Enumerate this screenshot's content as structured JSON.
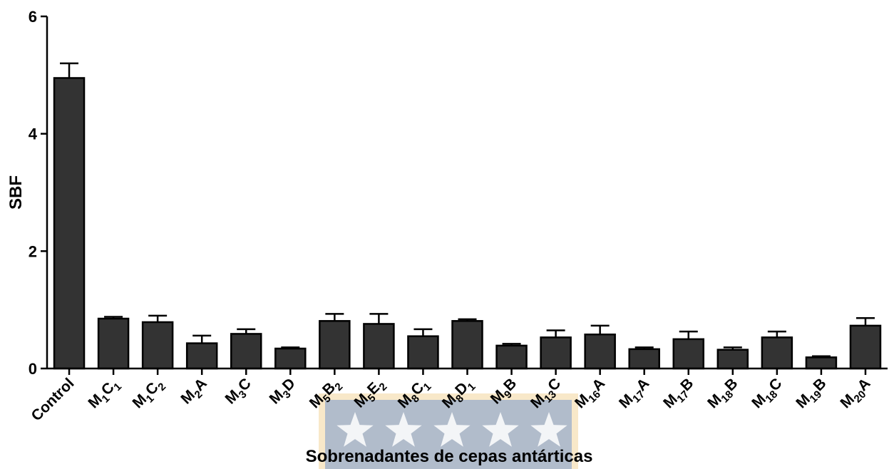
{
  "chart_data": {
    "type": "bar",
    "xlabel": "Sobrenadantes de cepas antárticas",
    "ylabel": "SBF",
    "ylim": [
      0,
      6
    ],
    "yticks": [
      "0",
      "2",
      "4",
      "6"
    ],
    "grid": false,
    "bar_color": "#333333",
    "categories": [
      {
        "main": "Control",
        "parts": [
          {
            "t": "Control",
            "sub": false
          }
        ]
      },
      {
        "main": "M1C1",
        "parts": [
          {
            "t": "M",
            "sub": false
          },
          {
            "t": "1",
            "sub": true
          },
          {
            "t": "C",
            "sub": false
          },
          {
            "t": "1",
            "sub": true
          }
        ]
      },
      {
        "main": "M1C2",
        "parts": [
          {
            "t": "M",
            "sub": false
          },
          {
            "t": "1",
            "sub": true
          },
          {
            "t": "C",
            "sub": false
          },
          {
            "t": "2",
            "sub": true
          }
        ]
      },
      {
        "main": "M2A",
        "parts": [
          {
            "t": "M",
            "sub": false
          },
          {
            "t": "2",
            "sub": true
          },
          {
            "t": "A",
            "sub": false
          }
        ]
      },
      {
        "main": "M3C",
        "parts": [
          {
            "t": "M",
            "sub": false
          },
          {
            "t": "3",
            "sub": true
          },
          {
            "t": "C",
            "sub": false
          }
        ]
      },
      {
        "main": "M3D",
        "parts": [
          {
            "t": "M",
            "sub": false
          },
          {
            "t": "3",
            "sub": true
          },
          {
            "t": "D",
            "sub": false
          }
        ]
      },
      {
        "main": "M5B2",
        "parts": [
          {
            "t": "M",
            "sub": false
          },
          {
            "t": "5",
            "sub": true
          },
          {
            "t": "B",
            "sub": false
          },
          {
            "t": "2",
            "sub": true
          }
        ]
      },
      {
        "main": "M5E2",
        "parts": [
          {
            "t": "M",
            "sub": false
          },
          {
            "t": "5",
            "sub": true
          },
          {
            "t": "E",
            "sub": false
          },
          {
            "t": "2",
            "sub": true
          }
        ]
      },
      {
        "main": "M8C1",
        "parts": [
          {
            "t": "M",
            "sub": false
          },
          {
            "t": "8",
            "sub": true
          },
          {
            "t": "C",
            "sub": false
          },
          {
            "t": "1",
            "sub": true
          }
        ]
      },
      {
        "main": "M8D1",
        "parts": [
          {
            "t": "M",
            "sub": false
          },
          {
            "t": "8",
            "sub": true
          },
          {
            "t": "D",
            "sub": false
          },
          {
            "t": "1",
            "sub": true
          }
        ]
      },
      {
        "main": "M9B",
        "parts": [
          {
            "t": "M",
            "sub": false
          },
          {
            "t": "9",
            "sub": true
          },
          {
            "t": "B",
            "sub": false
          }
        ]
      },
      {
        "main": "M13C",
        "parts": [
          {
            "t": "M",
            "sub": false
          },
          {
            "t": "13",
            "sub": true
          },
          {
            "t": "C",
            "sub": false
          }
        ]
      },
      {
        "main": "M16A",
        "parts": [
          {
            "t": "M",
            "sub": false
          },
          {
            "t": "16",
            "sub": true
          },
          {
            "t": "A",
            "sub": false
          }
        ]
      },
      {
        "main": "M17A",
        "parts": [
          {
            "t": "M",
            "sub": false
          },
          {
            "t": "17",
            "sub": true
          },
          {
            "t": "A",
            "sub": false
          }
        ]
      },
      {
        "main": "M17B",
        "parts": [
          {
            "t": "M",
            "sub": false
          },
          {
            "t": "17",
            "sub": true
          },
          {
            "t": "B",
            "sub": false
          }
        ]
      },
      {
        "main": "M18B",
        "parts": [
          {
            "t": "M",
            "sub": false
          },
          {
            "t": "18",
            "sub": true
          },
          {
            "t": "B",
            "sub": false
          }
        ]
      },
      {
        "main": "M18C",
        "parts": [
          {
            "t": "M",
            "sub": false
          },
          {
            "t": "18",
            "sub": true
          },
          {
            "t": "C",
            "sub": false
          }
        ]
      },
      {
        "main": "M19B",
        "parts": [
          {
            "t": "M",
            "sub": false
          },
          {
            "t": "19",
            "sub": true
          },
          {
            "t": "B",
            "sub": false
          }
        ]
      },
      {
        "main": "M20A",
        "parts": [
          {
            "t": "M",
            "sub": false
          },
          {
            "t": "20",
            "sub": true
          },
          {
            "t": "A",
            "sub": false
          }
        ]
      }
    ],
    "values": [
      4.95,
      0.85,
      0.79,
      0.43,
      0.59,
      0.34,
      0.81,
      0.76,
      0.55,
      0.81,
      0.39,
      0.53,
      0.58,
      0.33,
      0.5,
      0.32,
      0.53,
      0.19,
      0.73
    ],
    "errors": [
      0.25,
      0.03,
      0.11,
      0.13,
      0.08,
      0.02,
      0.12,
      0.17,
      0.12,
      0.03,
      0.03,
      0.12,
      0.15,
      0.03,
      0.13,
      0.04,
      0.1,
      0.02,
      0.13
    ]
  },
  "watermark": {
    "colors": {
      "border": "#f3d59c",
      "fill": "#9aaecb",
      "star": "#ffffff"
    },
    "star_count": 5
  }
}
